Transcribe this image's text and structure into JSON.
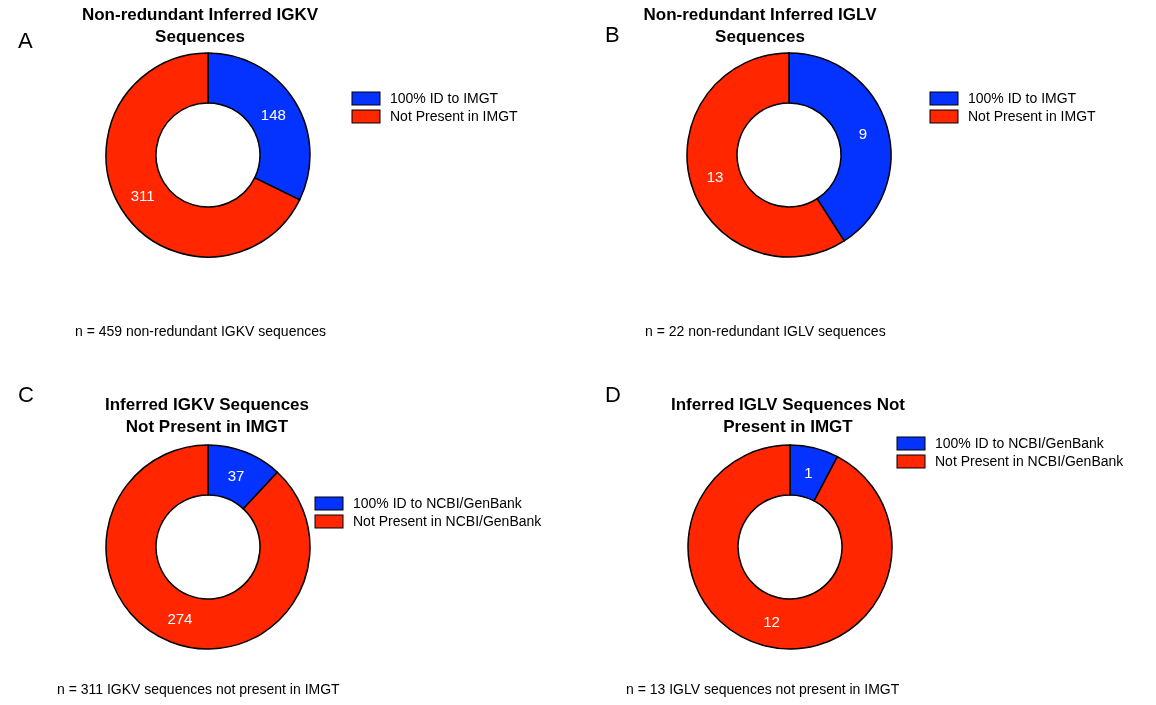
{
  "chart_data": [
    {
      "type": "donut",
      "title": "Non-redundant Inferred IGKV\nSequences",
      "categories": [
        "100% ID to IMGT",
        "Not Present in IMGT"
      ],
      "values": [
        148,
        311
      ],
      "colors": [
        "#0433ff",
        "#ff2600"
      ],
      "data_labels": true,
      "legend": "right",
      "annotations": [
        "A",
        "n = 459 non-redundant IGKV sequences"
      ]
    },
    {
      "type": "donut",
      "title": "Non-redundant Inferred IGLV\nSequences",
      "categories": [
        "100% ID to IMGT",
        "Not Present in IMGT"
      ],
      "values": [
        9,
        13
      ],
      "colors": [
        "#0433ff",
        "#ff2600"
      ],
      "data_labels": true,
      "legend": "right",
      "annotations": [
        "B",
        "n = 22 non-redundant IGLV sequences"
      ]
    },
    {
      "type": "donut",
      "title": "Inferred IGKV Sequences\nNot Present in IMGT",
      "categories": [
        "100% ID to NCBI/GenBank",
        "Not Present in NCBI/GenBank"
      ],
      "values": [
        37,
        274
      ],
      "colors": [
        "#0433ff",
        "#ff2600"
      ],
      "data_labels": true,
      "legend": "right",
      "annotations": [
        "C",
        "n = 311 IGKV sequences not present in IMGT"
      ]
    },
    {
      "type": "donut",
      "title": "Inferred IGLV Sequences Not\nPresent in IMGT",
      "categories": [
        "100% ID to NCBI/GenBank",
        "Not Present in NCBI/GenBank"
      ],
      "values": [
        1,
        12
      ],
      "colors": [
        "#0433ff",
        "#ff2600"
      ],
      "data_labels": true,
      "legend": "right",
      "annotations": [
        "D",
        "n = 13 IGLV sequences not present in IMGT"
      ]
    }
  ]
}
